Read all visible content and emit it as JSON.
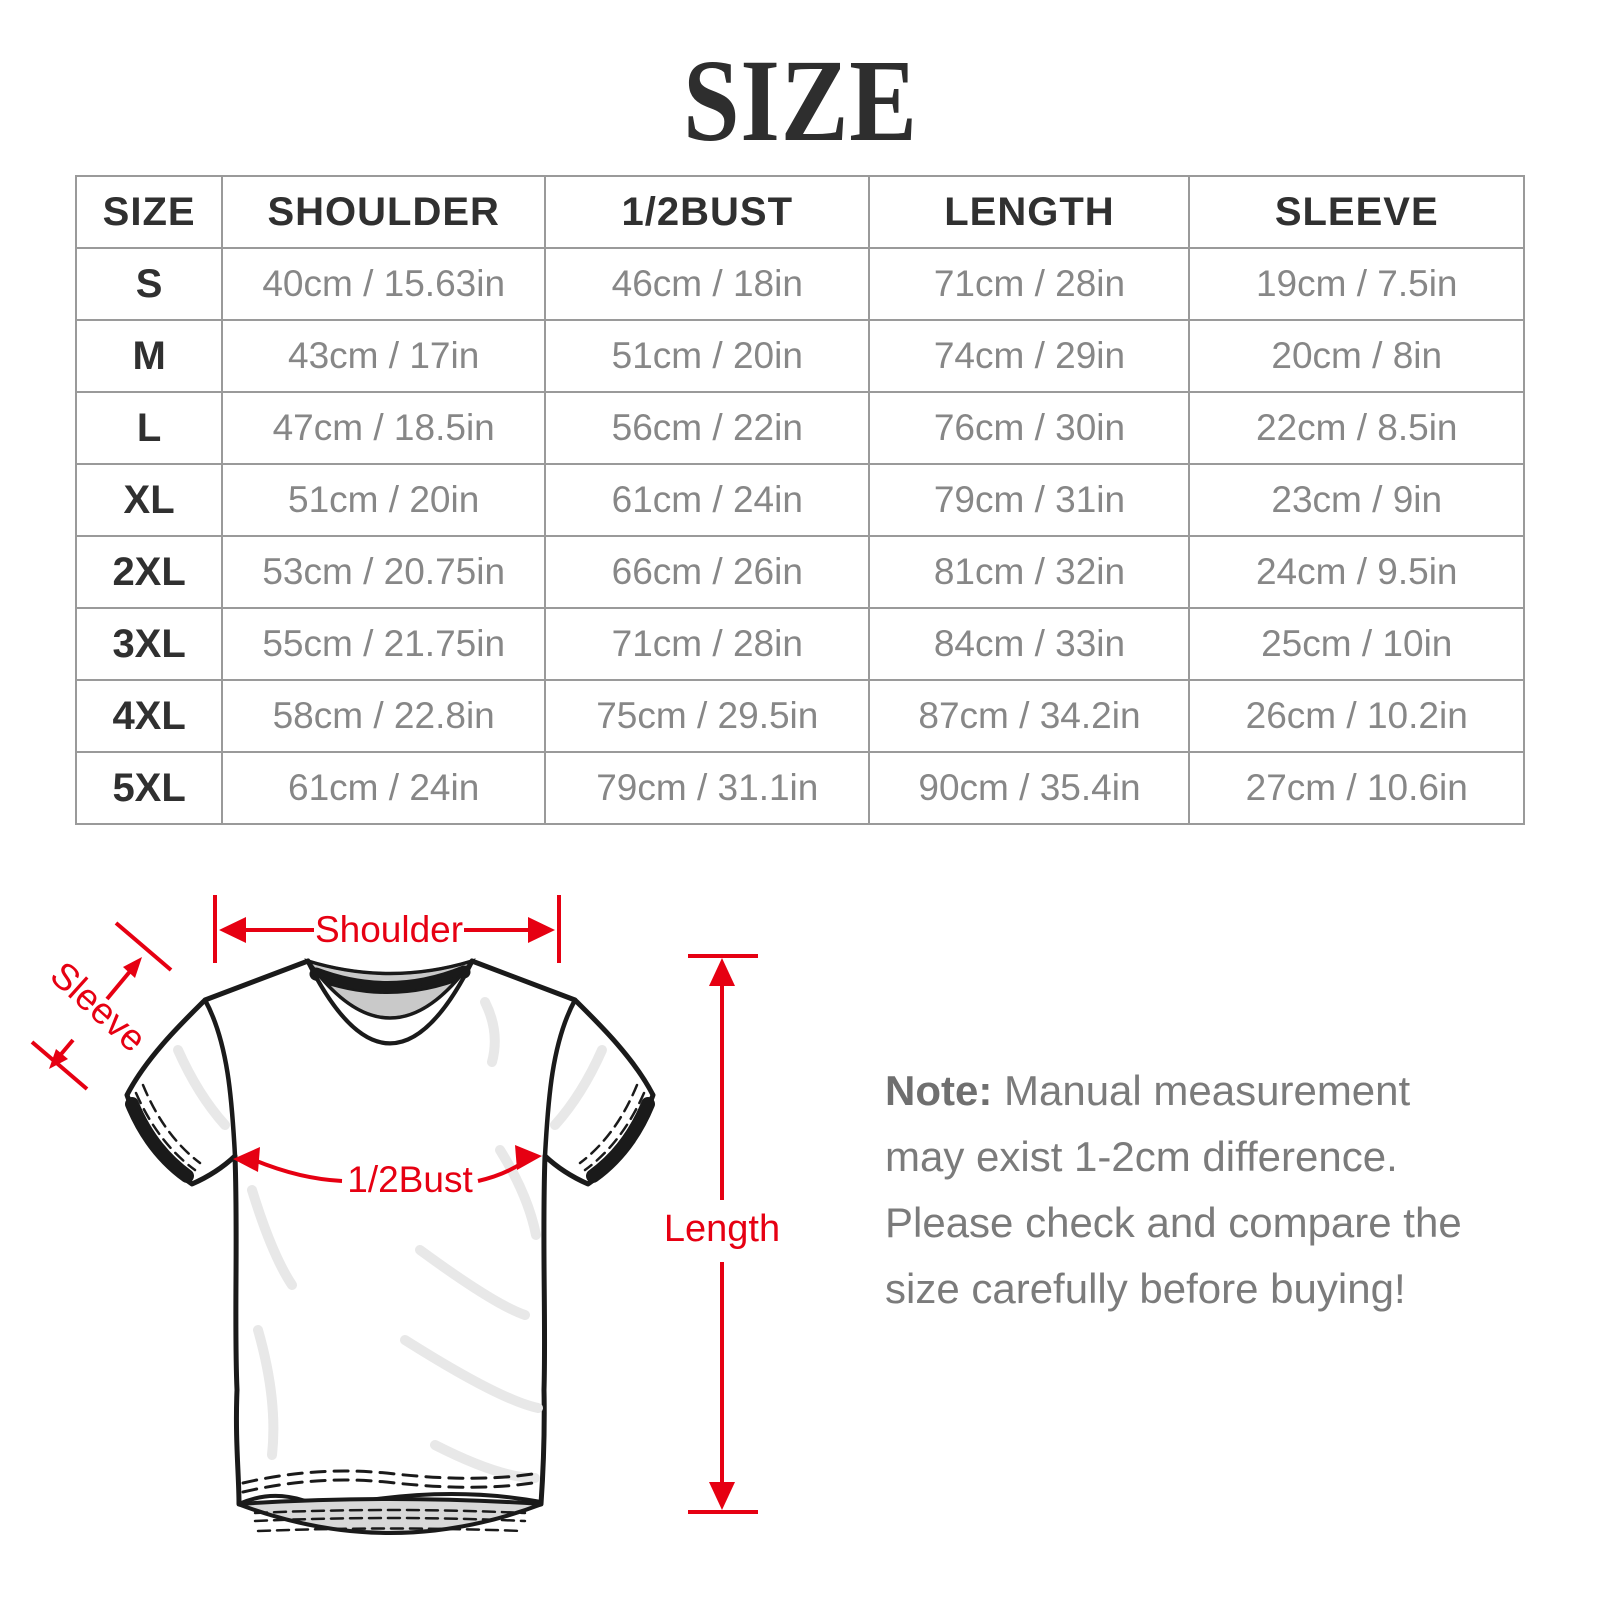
{
  "title": "SIZE",
  "colors": {
    "accent": "#e60012",
    "header_text": "#303030",
    "value_text": "#878787",
    "border": "#9a9a9a",
    "note_text": "#7b7b7b"
  },
  "table": {
    "columns": [
      "SIZE",
      "SHOULDER",
      "1/2BUST",
      "LENGTH",
      "SLEEVE"
    ],
    "rows": [
      {
        "size": "S",
        "shoulder": "40cm / 15.63in",
        "bust": "46cm / 18in",
        "length": "71cm / 28in",
        "sleeve": "19cm / 7.5in"
      },
      {
        "size": "M",
        "shoulder": "43cm / 17in",
        "bust": "51cm / 20in",
        "length": "74cm / 29in",
        "sleeve": "20cm / 8in"
      },
      {
        "size": "L",
        "shoulder": "47cm / 18.5in",
        "bust": "56cm / 22in",
        "length": "76cm / 30in",
        "sleeve": "22cm / 8.5in"
      },
      {
        "size": "XL",
        "shoulder": "51cm / 20in",
        "bust": "61cm / 24in",
        "length": "79cm / 31in",
        "sleeve": "23cm / 9in"
      },
      {
        "size": "2XL",
        "shoulder": "53cm / 20.75in",
        "bust": "66cm / 26in",
        "length": "81cm / 32in",
        "sleeve": "24cm / 9.5in"
      },
      {
        "size": "3XL",
        "shoulder": "55cm / 21.75in",
        "bust": "71cm / 28in",
        "length": "84cm / 33in",
        "sleeve": "25cm / 10in"
      },
      {
        "size": "4XL",
        "shoulder": "58cm / 22.8in",
        "bust": "75cm / 29.5in",
        "length": "87cm / 34.2in",
        "sleeve": "26cm / 10.2in"
      },
      {
        "size": "5XL",
        "shoulder": "61cm / 24in",
        "bust": "79cm / 31.1in",
        "length": "90cm / 35.4in",
        "sleeve": "27cm / 10.6in"
      }
    ]
  },
  "diagram": {
    "labels": {
      "shoulder": "Shoulder",
      "sleeve": "Sleeve",
      "bust": "1/2Bust",
      "length": "Length"
    }
  },
  "note": {
    "prefix": "Note:",
    "body": " Manual measurement may exist 1-2cm difference. Please check and compare the size carefully before buying!"
  }
}
